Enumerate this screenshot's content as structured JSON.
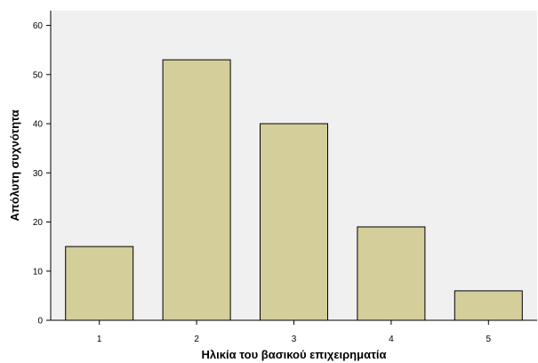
{
  "chart_data": {
    "type": "bar",
    "title": "",
    "xlabel": "Ηλικία του βασικού επιχειρηματία",
    "ylabel": "Απόλυτη συχνότητα",
    "categories": [
      "1",
      "2",
      "3",
      "4",
      "5"
    ],
    "values": [
      15,
      53,
      40,
      19,
      6
    ],
    "ylim": [
      0,
      63
    ],
    "yticks": [
      "0",
      "10",
      "20",
      "30",
      "40",
      "50",
      "60"
    ],
    "grid": false,
    "legend": "none",
    "colors": {
      "plot_background": "#f0f0f0",
      "bar_fill": "#d3ce9a",
      "bar_stroke": "#000000",
      "axis": "#000000"
    }
  }
}
